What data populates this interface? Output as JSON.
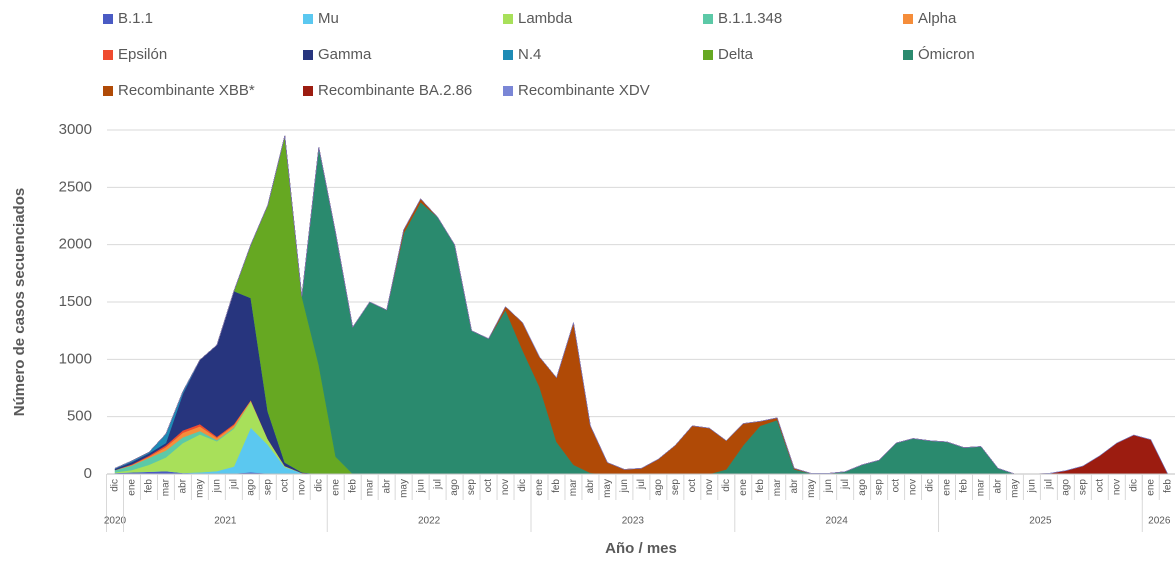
{
  "chart_data": {
    "type": "stacked-area",
    "y_label": "Número de casos secuenciados",
    "x_label": "Año / mes",
    "categories": [
      "dic",
      "ene",
      "feb",
      "mar",
      "abr",
      "may",
      "jun",
      "jul",
      "ago",
      "sep",
      "oct",
      "nov",
      "dic",
      "ene",
      "feb",
      "mar",
      "abr",
      "may",
      "jun",
      "jul",
      "ago",
      "sep",
      "oct",
      "nov",
      "dic",
      "ene",
      "feb",
      "mar",
      "abr",
      "may",
      "jun",
      "jul",
      "ago",
      "sep",
      "oct",
      "nov",
      "dic",
      "ene",
      "feb",
      "mar",
      "abr",
      "may",
      "jun",
      "jul",
      "ago",
      "sep",
      "oct",
      "nov",
      "dic",
      "ene",
      "feb",
      "mar",
      "abr",
      "may",
      "jun",
      "jul",
      "ago",
      "sep",
      "oct",
      "nov",
      "dic",
      "ene",
      "feb"
    ],
    "years": [
      "2020",
      "2021",
      "2022",
      "2023",
      "2024",
      "2025",
      "2026"
    ],
    "ylim": [
      0,
      3000
    ],
    "yticks": [
      0,
      500,
      1000,
      1500,
      2000,
      2500,
      3000
    ],
    "grid": true,
    "series": [
      {
        "name": "B.1.1",
        "color": "#4a5bc4",
        "values": [
          10,
          15,
          20,
          25,
          10,
          5,
          5,
          5,
          15,
          5,
          0,
          0,
          0,
          0,
          0,
          0,
          0,
          0,
          0,
          0,
          0,
          0,
          0,
          0,
          0,
          0,
          0,
          0,
          0,
          0,
          0,
          0,
          0,
          0,
          0,
          0,
          0,
          0,
          0,
          0,
          0,
          0,
          0,
          0,
          0,
          0,
          0,
          0,
          0,
          0,
          0,
          0,
          0,
          0,
          0,
          0,
          0,
          0,
          0,
          0,
          0,
          0,
          0
        ]
      },
      {
        "name": "Mu",
        "color": "#5bc8f0",
        "values": [
          0,
          0,
          0,
          0,
          0,
          10,
          20,
          60,
          390,
          250,
          60,
          10,
          0,
          0,
          0,
          0,
          0,
          0,
          0,
          0,
          0,
          0,
          0,
          0,
          0,
          0,
          0,
          0,
          0,
          0,
          0,
          0,
          0,
          0,
          0,
          0,
          0,
          0,
          0,
          0,
          0,
          0,
          0,
          0,
          0,
          0,
          0,
          0,
          0,
          0,
          0,
          0,
          0,
          0,
          0,
          0,
          0,
          0,
          0,
          0,
          0,
          0,
          0
        ]
      },
      {
        "name": "Lambda",
        "color": "#a8e05a",
        "values": [
          5,
          20,
          60,
          120,
          260,
          330,
          260,
          330,
          230,
          50,
          10,
          0,
          0,
          0,
          0,
          0,
          0,
          0,
          0,
          0,
          0,
          0,
          0,
          0,
          0,
          0,
          0,
          0,
          0,
          0,
          0,
          0,
          0,
          0,
          0,
          0,
          0,
          0,
          0,
          0,
          0,
          0,
          0,
          0,
          0,
          0,
          0,
          0,
          0,
          0,
          0,
          0,
          0,
          0,
          0,
          0,
          0,
          0,
          0,
          0,
          0,
          0,
          0
        ]
      },
      {
        "name": "B.1.1.348",
        "color": "#5cc9a7",
        "values": [
          20,
          40,
          60,
          60,
          50,
          30,
          10,
          10,
          0,
          0,
          0,
          0,
          0,
          0,
          0,
          0,
          0,
          0,
          0,
          0,
          0,
          0,
          0,
          0,
          0,
          0,
          0,
          0,
          0,
          0,
          0,
          0,
          0,
          0,
          0,
          0,
          0,
          0,
          0,
          0,
          0,
          0,
          0,
          0,
          0,
          0,
          0,
          0,
          0,
          0,
          0,
          0,
          0,
          0,
          0,
          0,
          0,
          0,
          0,
          0,
          0,
          0,
          0
        ]
      },
      {
        "name": "Alpha",
        "color": "#f58d3a",
        "values": [
          0,
          5,
          10,
          30,
          40,
          40,
          20,
          20,
          10,
          0,
          0,
          0,
          0,
          0,
          0,
          0,
          0,
          0,
          0,
          0,
          0,
          0,
          0,
          0,
          0,
          0,
          0,
          0,
          0,
          0,
          0,
          0,
          0,
          0,
          0,
          0,
          0,
          0,
          0,
          0,
          0,
          0,
          0,
          0,
          0,
          0,
          0,
          0,
          0,
          0,
          0,
          0,
          0,
          0,
          0,
          0,
          0,
          0,
          0,
          0,
          0,
          0,
          0
        ]
      },
      {
        "name": "Epsilón",
        "color": "#ef4b2f",
        "values": [
          0,
          5,
          10,
          15,
          20,
          20,
          10,
          10,
          0,
          0,
          0,
          0,
          0,
          0,
          0,
          0,
          0,
          0,
          0,
          0,
          0,
          0,
          0,
          0,
          0,
          0,
          0,
          0,
          0,
          0,
          0,
          0,
          0,
          0,
          0,
          0,
          0,
          0,
          0,
          0,
          0,
          0,
          0,
          0,
          0,
          0,
          0,
          0,
          0,
          0,
          0,
          0,
          0,
          0,
          0,
          0,
          0,
          0,
          0,
          0,
          0,
          0,
          0
        ]
      },
      {
        "name": "Gamma",
        "color": "#27357e",
        "values": [
          10,
          20,
          20,
          20,
          320,
          560,
          800,
          1160,
          890,
          240,
          30,
          5,
          0,
          0,
          0,
          0,
          0,
          0,
          0,
          0,
          0,
          0,
          0,
          0,
          0,
          0,
          0,
          0,
          0,
          0,
          0,
          0,
          0,
          0,
          0,
          0,
          0,
          0,
          0,
          0,
          0,
          0,
          0,
          0,
          0,
          0,
          0,
          0,
          0,
          0,
          0,
          0,
          0,
          0,
          0,
          0,
          0,
          0,
          0,
          0,
          0,
          0,
          0
        ]
      },
      {
        "name": "N.4",
        "color": "#1e8bb5",
        "values": [
          5,
          10,
          10,
          80,
          20,
          0,
          0,
          0,
          0,
          0,
          0,
          0,
          0,
          0,
          0,
          0,
          0,
          0,
          0,
          0,
          0,
          0,
          0,
          0,
          0,
          0,
          0,
          0,
          0,
          0,
          0,
          0,
          0,
          0,
          0,
          0,
          0,
          0,
          0,
          0,
          0,
          0,
          0,
          0,
          0,
          0,
          0,
          0,
          0,
          0,
          0,
          0,
          0,
          0,
          0,
          0,
          0,
          0,
          0,
          0,
          0,
          0,
          0
        ]
      },
      {
        "name": "Delta",
        "color": "#66a822",
        "values": [
          0,
          0,
          0,
          0,
          0,
          0,
          0,
          0,
          465,
          1800,
          2850,
          1535,
          950,
          150,
          0,
          0,
          0,
          0,
          0,
          0,
          0,
          0,
          0,
          0,
          0,
          0,
          0,
          0,
          0,
          0,
          0,
          0,
          0,
          0,
          0,
          0,
          0,
          0,
          0,
          0,
          0,
          0,
          0,
          0,
          0,
          0,
          0,
          0,
          0,
          0,
          0,
          0,
          0,
          0,
          0,
          0,
          0,
          0,
          0,
          0,
          0,
          0,
          0
        ]
      },
      {
        "name": "Ómicron",
        "color": "#2a8a6e",
        "values": [
          0,
          0,
          0,
          0,
          0,
          0,
          0,
          0,
          0,
          0,
          0,
          0,
          1900,
          1950,
          1280,
          1500,
          1430,
          2100,
          2370,
          2240,
          2000,
          1250,
          1180,
          1430,
          1080,
          760,
          280,
          80,
          10,
          0,
          0,
          0,
          0,
          0,
          0,
          0,
          40,
          250,
          420,
          470,
          40,
          5,
          5,
          20,
          80,
          120,
          270,
          310,
          290,
          280,
          230,
          240,
          50,
          0,
          0,
          0,
          0,
          0,
          0,
          0,
          0,
          0,
          0
        ]
      },
      {
        "name": "Recombinante XBB*",
        "color": "#b04a06",
        "values": [
          0,
          0,
          0,
          0,
          0,
          0,
          0,
          0,
          0,
          0,
          0,
          0,
          0,
          0,
          0,
          0,
          0,
          30,
          30,
          0,
          0,
          0,
          0,
          30,
          240,
          260,
          560,
          1240,
          410,
          100,
          40,
          50,
          130,
          250,
          420,
          400,
          250,
          190,
          40,
          20,
          10,
          0,
          0,
          0,
          0,
          0,
          0,
          0,
          0,
          0,
          0,
          0,
          0,
          0,
          0,
          0,
          0,
          0,
          0,
          0,
          0,
          0,
          0
        ]
      },
      {
        "name": "Recombinante BA.2.86",
        "color": "#9c1c10",
        "values": [
          0,
          0,
          0,
          0,
          0,
          0,
          0,
          0,
          0,
          0,
          0,
          0,
          0,
          0,
          0,
          0,
          0,
          0,
          0,
          0,
          0,
          0,
          0,
          0,
          0,
          0,
          0,
          0,
          0,
          0,
          0,
          0,
          0,
          0,
          0,
          0,
          0,
          0,
          0,
          0,
          0,
          0,
          0,
          0,
          0,
          0,
          0,
          0,
          0,
          0,
          0,
          0,
          0,
          0,
          0,
          5,
          30,
          70,
          160,
          270,
          340,
          300,
          0
        ]
      },
      {
        "name": "Recombinante XDV",
        "color": "#7a86d6",
        "values": [
          0,
          0,
          0,
          0,
          0,
          0,
          0,
          0,
          0,
          0,
          0,
          0,
          0,
          0,
          0,
          0,
          0,
          0,
          0,
          0,
          0,
          0,
          0,
          0,
          0,
          0,
          0,
          0,
          0,
          0,
          0,
          0,
          0,
          0,
          0,
          0,
          0,
          0,
          0,
          0,
          0,
          0,
          0,
          0,
          0,
          0,
          0,
          0,
          0,
          0,
          0,
          0,
          0,
          0,
          0,
          0,
          0,
          0,
          0,
          0,
          0,
          0,
          0
        ]
      }
    ]
  }
}
